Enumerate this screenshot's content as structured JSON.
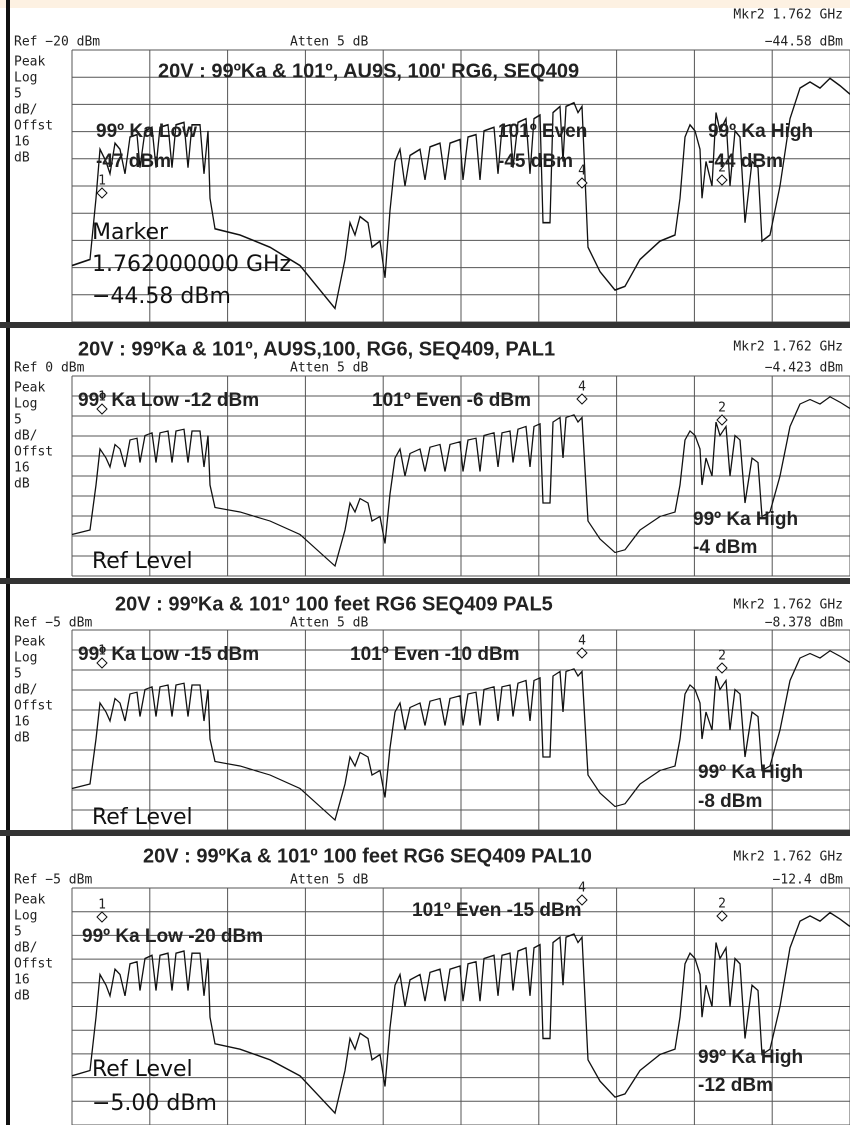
{
  "panels": [
    {
      "title": "20V : 99ºKa  & 101º, AU9S, 100' RG6, SEQ409",
      "marker_freq": "Mkr2  1.762 GHz",
      "ref": "Ref −20 dBm",
      "atten": "Atten 5 dB",
      "marker_level": "−44.58 dBm",
      "scale_labels": [
        "Peak",
        "Log",
        "5",
        "dB/",
        "Offst",
        "16",
        "dB"
      ],
      "annotations": [
        "99º Ka Low",
        "-47 dBm",
        "101º Even",
        "-45 dBm",
        "99º Ka High",
        "-44 dBm",
        "Marker",
        "1.762000000 GHz",
        "−44.58 dBm"
      ],
      "marker_numbers": [
        "1",
        "4",
        "2"
      ]
    },
    {
      "title": "20V : 99ºKa  & 101º, AU9S,100, RG6, SEQ409, PAL1",
      "marker_freq": "Mkr2  1.762 GHz",
      "ref": "Ref 0 dBm",
      "atten": "Atten 5 dB",
      "marker_level": "−4.423 dBm",
      "scale_labels": [
        "Peak",
        "Log",
        "5",
        "dB/",
        "Offst",
        "16",
        "dB"
      ],
      "annotations": [
        "99º Ka Low -12 dBm",
        "101º Even -6 dBm",
        "99º Ka High",
        "-4 dBm",
        "Ref Level"
      ],
      "marker_numbers": [
        "1",
        "4",
        "2"
      ]
    },
    {
      "title": "20V : 99ºKa  & 101º  100 feet RG6   SEQ409   PAL5",
      "marker_freq": "Mkr2  1.762 GHz",
      "ref": "Ref −5 dBm",
      "atten": "Atten 5 dB",
      "marker_level": "−8.378 dBm",
      "scale_labels": [
        "Peak",
        "Log",
        "5",
        "dB/",
        "Offst",
        "16",
        "dB"
      ],
      "annotations": [
        "99º Ka Low -15 dBm",
        "101º Even -10 dBm",
        "99º Ka High",
        "-8 dBm",
        "Ref Level"
      ],
      "marker_numbers": [
        "1",
        "4",
        "2"
      ]
    },
    {
      "title": "20V : 99ºKa  & 101º  100 feet RG6   SEQ409   PAL10",
      "marker_freq": "Mkr2  1.762 GHz",
      "ref": "Ref −5 dBm",
      "atten": "Atten 5 dB",
      "marker_level": "−12.4 dBm",
      "scale_labels": [
        "Peak",
        "Log",
        "5",
        "dB/",
        "Offst",
        "16",
        "dB"
      ],
      "annotations": [
        "101º Even -15 dBm",
        "99º Ka Low -20 dBm",
        "99º Ka High",
        "-12 dBm",
        "Ref Level",
        "−5.00 dBm"
      ],
      "marker_numbers": [
        "1",
        "4",
        "2"
      ]
    }
  ]
}
